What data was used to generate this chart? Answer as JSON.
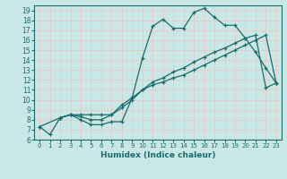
{
  "xlabel": "Humidex (Indice chaleur)",
  "ylabel": "",
  "xlim": [
    -0.5,
    23.5
  ],
  "ylim": [
    6,
    19.5
  ],
  "xticks": [
    0,
    1,
    2,
    3,
    4,
    5,
    6,
    7,
    8,
    9,
    10,
    11,
    12,
    13,
    14,
    15,
    16,
    17,
    18,
    19,
    20,
    21,
    22,
    23
  ],
  "yticks": [
    6,
    7,
    8,
    9,
    10,
    11,
    12,
    13,
    14,
    15,
    16,
    17,
    18,
    19
  ],
  "bg_color": "#c9e8e5",
  "grid_color": "#b0d4d0",
  "line_color": "#1a6b6b",
  "line1_x": [
    0,
    1,
    2,
    3,
    4,
    5,
    6,
    7,
    8,
    9,
    10,
    11,
    12,
    13,
    14,
    15,
    16,
    17,
    18,
    19,
    20,
    21,
    22,
    23
  ],
  "line1_y": [
    7.3,
    6.5,
    8.2,
    8.5,
    8.0,
    7.5,
    7.5,
    7.8,
    7.8,
    10.2,
    14.2,
    17.4,
    18.1,
    17.2,
    17.2,
    18.8,
    19.2,
    18.3,
    17.5,
    17.5,
    16.2,
    14.8,
    13.2,
    11.7
  ],
  "line2_x": [
    2,
    3,
    4,
    5,
    6,
    7,
    8,
    9,
    10,
    11,
    12,
    13,
    14,
    15,
    16,
    17,
    18,
    19,
    20,
    21,
    22,
    23
  ],
  "line2_y": [
    8.2,
    8.5,
    8.5,
    8.5,
    8.5,
    8.5,
    9.2,
    10.0,
    11.0,
    11.8,
    12.2,
    12.8,
    13.2,
    13.8,
    14.3,
    14.8,
    15.2,
    15.7,
    16.2,
    16.5,
    11.2,
    11.7
  ],
  "line3_x": [
    0,
    2,
    3,
    4,
    5,
    6,
    7,
    8,
    9,
    10,
    11,
    12,
    13,
    14,
    15,
    16,
    17,
    18,
    19,
    20,
    21,
    22,
    23
  ],
  "line3_y": [
    7.3,
    8.2,
    8.5,
    8.3,
    8.0,
    8.0,
    8.5,
    9.5,
    10.2,
    11.0,
    11.5,
    11.8,
    12.2,
    12.5,
    13.0,
    13.5,
    14.0,
    14.5,
    15.0,
    15.5,
    16.0,
    16.5,
    11.7
  ]
}
